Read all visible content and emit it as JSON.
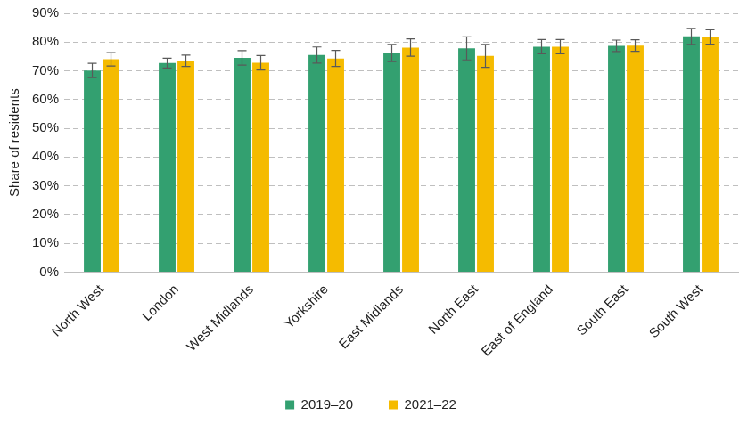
{
  "chart_data": {
    "type": "bar",
    "y_label": "Share of residents",
    "categories": [
      "North West",
      "London",
      "West Midlands",
      "Yorkshire",
      "East Midlands",
      "North East",
      "East of England",
      "South East",
      "South West"
    ],
    "series": [
      {
        "name": "2019–20",
        "color": "#33a070",
        "values": [
          70.1,
          72.7,
          74.5,
          75.5,
          76.2,
          77.8,
          78.4,
          78.7,
          82.0
        ],
        "errors": [
          2.5,
          1.7,
          2.5,
          2.8,
          3.0,
          4.0,
          2.5,
          2.0,
          2.8
        ]
      },
      {
        "name": "2021–22",
        "color": "#f5bb00",
        "values": [
          74.0,
          73.5,
          72.8,
          74.3,
          78.1,
          75.2,
          78.4,
          78.8,
          81.8
        ],
        "errors": [
          2.3,
          2.0,
          2.5,
          2.8,
          3.0,
          4.0,
          2.5,
          2.0,
          2.5
        ]
      }
    ],
    "ylim": [
      0,
      90
    ],
    "yticks": [
      {
        "value": 0,
        "label": "0%"
      },
      {
        "value": 10,
        "label": "10%"
      },
      {
        "value": 20,
        "label": "20%"
      },
      {
        "value": 30,
        "label": "30%"
      },
      {
        "value": 40,
        "label": "40%"
      },
      {
        "value": 50,
        "label": "50%"
      },
      {
        "value": 60,
        "label": "60%"
      },
      {
        "value": 70,
        "label": "70%"
      },
      {
        "value": 80,
        "label": "80%"
      },
      {
        "value": 90,
        "label": "90%"
      }
    ],
    "grid": true,
    "legend": "bottom"
  }
}
